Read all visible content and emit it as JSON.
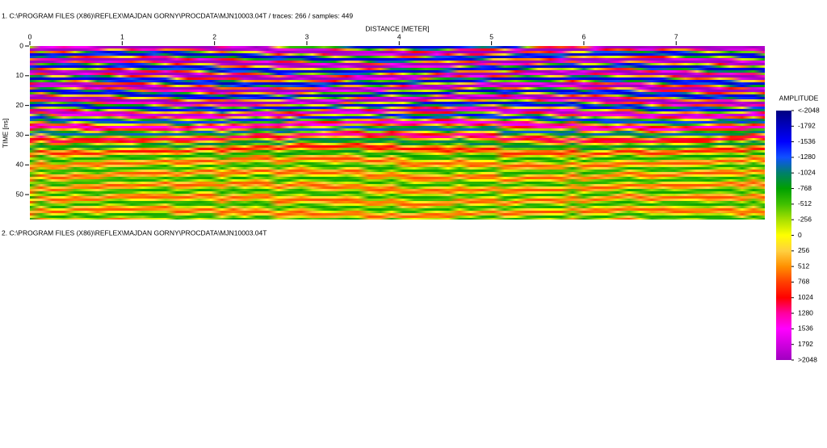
{
  "chart_data": {
    "type": "heatmap",
    "title": "1. C:\\PROGRAM FILES (X86)\\REFLEX\\MAJDAN GORNY\\PROCDATA\\MJN10003.04T / traces: 266 / samples: 449",
    "xlabel": "DISTANCE [METER]",
    "ylabel": "TIME [ns]",
    "xlim": [
      0,
      7.96
    ],
    "xticks": [
      0,
      1,
      2,
      3,
      4,
      5,
      6,
      7
    ],
    "ylim": [
      0,
      58.4
    ],
    "yticks": [
      0,
      10,
      20,
      30,
      40,
      50
    ],
    "colorbar": {
      "title": "AMPLITUDE",
      "lim": [
        -2048,
        2048
      ],
      "ticks": [
        {
          "value": -2048,
          "label": "<-2048"
        },
        -1792,
        -1536,
        -1280,
        -1024,
        -768,
        -512,
        -256,
        0,
        256,
        512,
        768,
        1024,
        1280,
        1536,
        1792,
        {
          "value": 2048,
          "label": ">2048"
        }
      ],
      "colors": [
        "#000080",
        "#0000c0",
        "#0000ff",
        "#1050ff",
        "#00806a",
        "#00a000",
        "#40c000",
        "#a8e000",
        "#ffff00",
        "#ffd040",
        "#ff9000",
        "#ff4000",
        "#ff0000",
        "#ff00a0",
        "#ff00ff",
        "#d000e0",
        "#a000c0"
      ]
    }
  },
  "second_panel": {
    "title": "2. C:\\PROGRAM FILES (X86)\\REFLEX\\MAJDAN GORNY\\PROCDATA\\MJN10003.04T"
  }
}
